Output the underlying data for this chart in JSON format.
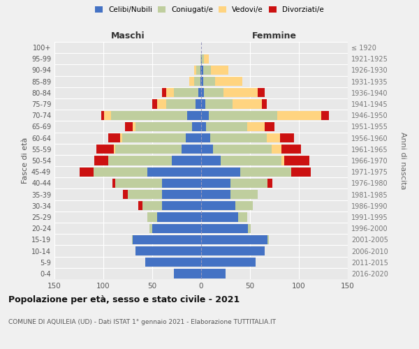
{
  "age_groups": [
    "0-4",
    "5-9",
    "10-14",
    "15-19",
    "20-24",
    "25-29",
    "30-34",
    "35-39",
    "40-44",
    "45-49",
    "50-54",
    "55-59",
    "60-64",
    "65-69",
    "70-74",
    "75-79",
    "80-84",
    "85-89",
    "90-94",
    "95-99",
    "100+"
  ],
  "birth_years": [
    "2016-2020",
    "2011-2015",
    "2006-2010",
    "2001-2005",
    "1996-2000",
    "1991-1995",
    "1986-1990",
    "1981-1985",
    "1976-1980",
    "1971-1975",
    "1966-1970",
    "1961-1965",
    "1956-1960",
    "1951-1955",
    "1946-1950",
    "1941-1945",
    "1936-1940",
    "1931-1935",
    "1926-1930",
    "1921-1925",
    "≤ 1920"
  ],
  "maschi": {
    "celibi": [
      28,
      57,
      67,
      70,
      50,
      45,
      40,
      40,
      40,
      55,
      30,
      20,
      16,
      9,
      14,
      6,
      3,
      1,
      1,
      0,
      0
    ],
    "coniugati": [
      0,
      0,
      0,
      1,
      3,
      10,
      20,
      35,
      48,
      55,
      65,
      68,
      65,
      58,
      78,
      30,
      25,
      6,
      4,
      1,
      0
    ],
    "vedovi": [
      0,
      0,
      0,
      0,
      0,
      0,
      0,
      0,
      0,
      0,
      0,
      1,
      2,
      3,
      7,
      9,
      8,
      5,
      2,
      0,
      0
    ],
    "divorziati": [
      0,
      0,
      0,
      0,
      0,
      0,
      4,
      5,
      3,
      14,
      14,
      18,
      12,
      8,
      3,
      5,
      4,
      0,
      0,
      0,
      0
    ]
  },
  "femmine": {
    "nubili": [
      25,
      56,
      65,
      68,
      48,
      38,
      35,
      30,
      30,
      40,
      20,
      12,
      9,
      5,
      8,
      4,
      3,
      2,
      2,
      1,
      0
    ],
    "coniugate": [
      0,
      0,
      0,
      1,
      3,
      9,
      18,
      28,
      38,
      52,
      62,
      60,
      58,
      42,
      70,
      28,
      20,
      12,
      8,
      2,
      0
    ],
    "vedove": [
      0,
      0,
      0,
      0,
      0,
      0,
      0,
      0,
      0,
      0,
      3,
      10,
      14,
      18,
      45,
      30,
      35,
      28,
      18,
      5,
      0
    ],
    "divorziate": [
      0,
      0,
      0,
      0,
      0,
      0,
      0,
      0,
      5,
      20,
      26,
      20,
      14,
      10,
      8,
      5,
      7,
      0,
      0,
      0,
      0
    ]
  },
  "colors": {
    "celibi_nubili": "#4472C4",
    "coniugati": "#BFCE9E",
    "vedovi": "#FFD480",
    "divorziati": "#CC1111"
  },
  "xlim": 150,
  "title": "Popolazione per età, sesso e stato civile - 2021",
  "subtitle": "COMUNE DI AQUILEIA (UD) - Dati ISTAT 1° gennaio 2021 - Elaborazione TUTTITALIA.IT",
  "ylabel_left": "Fasce di età",
  "ylabel_right": "Anni di nascita",
  "xlabel_left": "Maschi",
  "xlabel_right": "Femmine",
  "background_color": "#f0f0f0",
  "plot_bg": "#e8e8e8",
  "grid_color": "#ffffff"
}
